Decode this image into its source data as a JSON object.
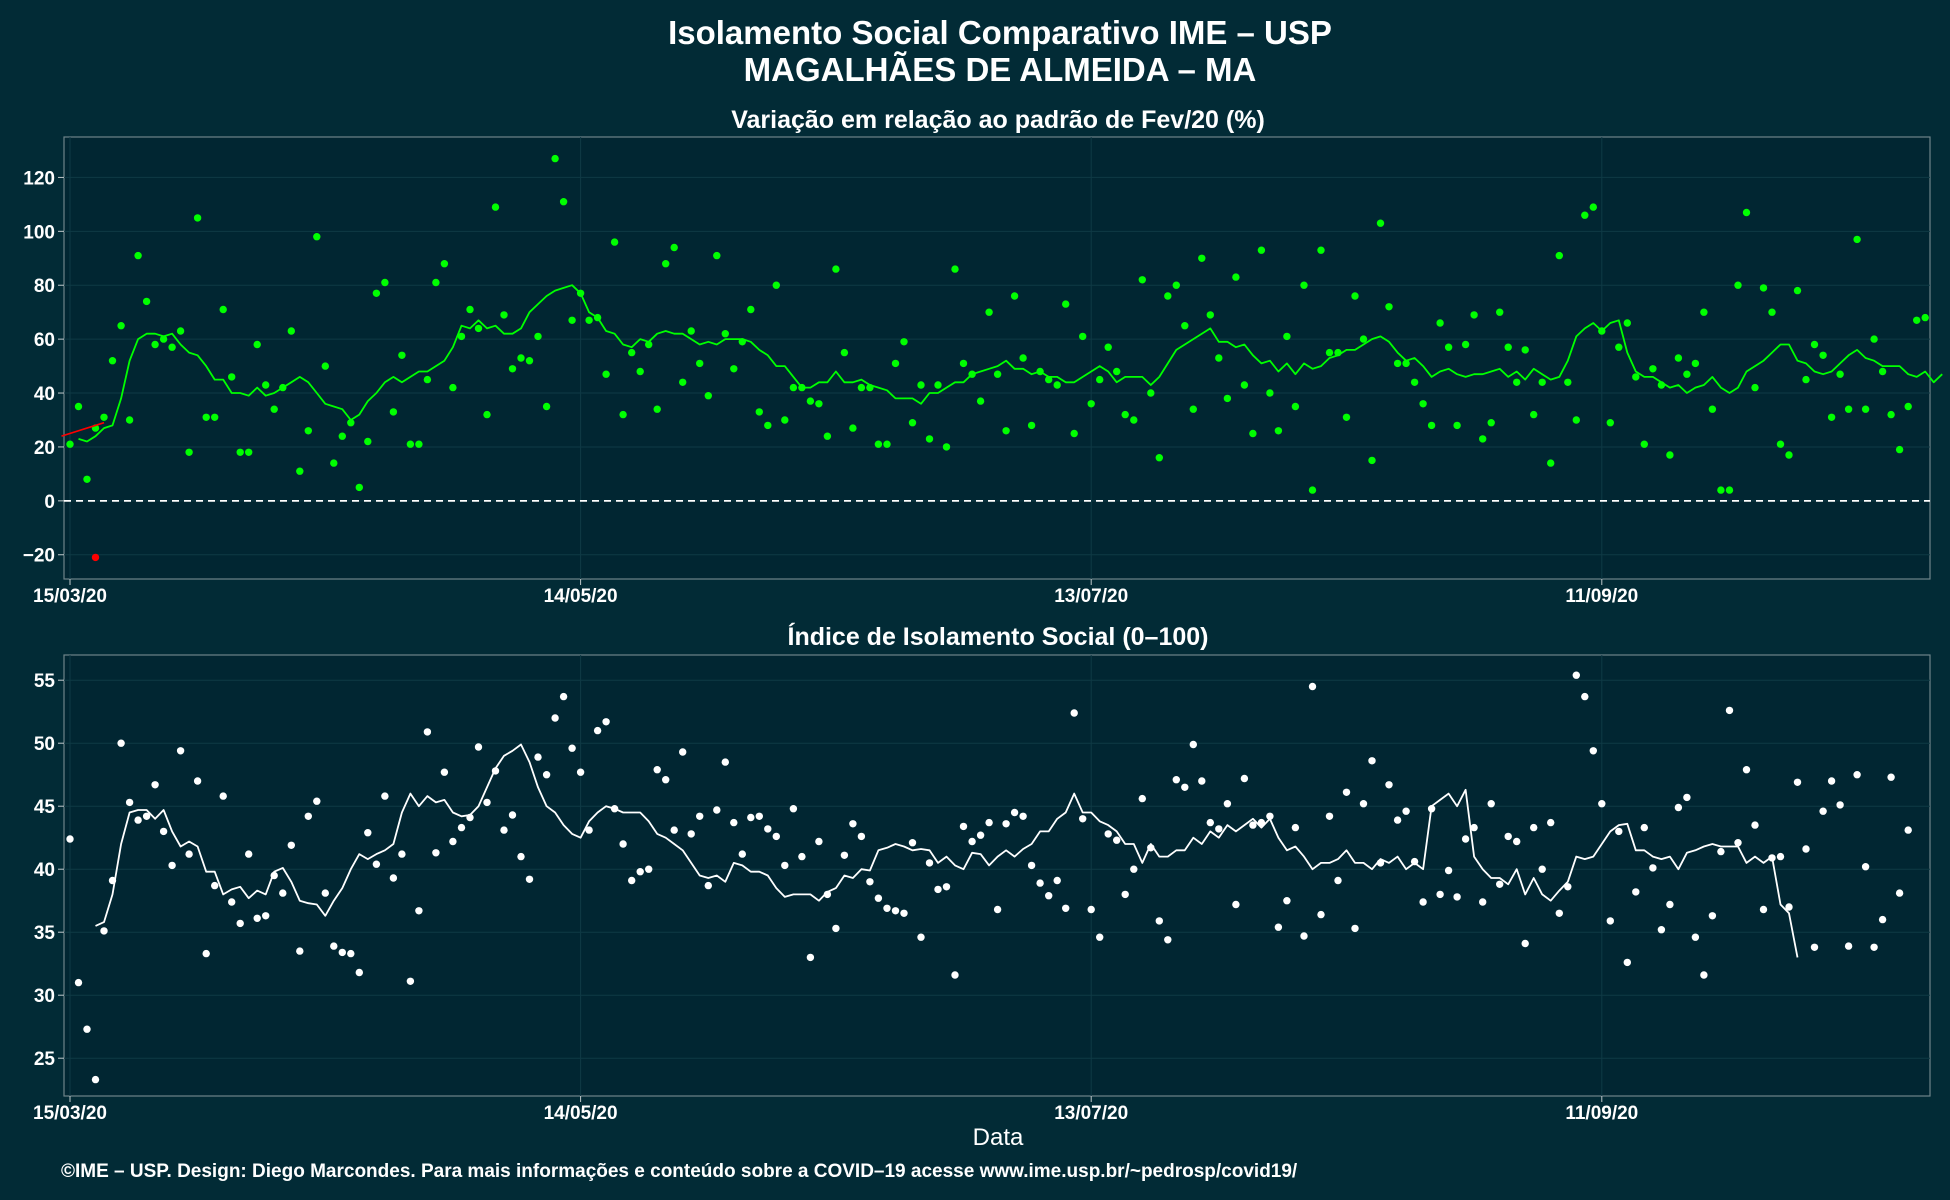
{
  "header": {
    "title": "Isolamento Social Comparativo IME – USP",
    "subtitle": "MAGALHÃES DE ALMEIDA – MA"
  },
  "footer": {
    "xlabel": "Data",
    "credit": "©IME – USP. Design: Diego Marcondes. Para mais informações e conteúdo sobre a COVID–19 acesse www.ime.usp.br/~pedrosp/covid19/"
  },
  "colors": {
    "background": "#022b36",
    "variation_series": "#00ff00",
    "negative_point": "#ff0000",
    "index_series": "#ffffff"
  },
  "chart_data": [
    {
      "type": "scatter",
      "title": "Variação em relação ao padrão de Fev/20 (%)",
      "xlabel": "",
      "ylabel": "",
      "x_start": "15/03/20",
      "x_ticks": [
        {
          "label": "15/03/20",
          "day": 0
        },
        {
          "label": "14/05/20",
          "day": 60
        },
        {
          "label": "13/07/20",
          "day": 120
        },
        {
          "label": "11/09/20",
          "day": 180
        }
      ],
      "ylim": [
        -29,
        135
      ],
      "y_ticks": [
        -20,
        0,
        20,
        40,
        60,
        80,
        100,
        120
      ],
      "reference_line": 0,
      "grid": true,
      "points": [
        21,
        35,
        8,
        27,
        31,
        52,
        65,
        30,
        91,
        74,
        58,
        60,
        57,
        63,
        18,
        105,
        31,
        31,
        71,
        46,
        18,
        18,
        58,
        43,
        34,
        42,
        63,
        11,
        26,
        98,
        50,
        14,
        24,
        29,
        5,
        22,
        77,
        81,
        33,
        54,
        21,
        21,
        45,
        81,
        88,
        42,
        61,
        71,
        64,
        32,
        109,
        69,
        49,
        53,
        52,
        61,
        35,
        127,
        111,
        67,
        77,
        67,
        68,
        47,
        96,
        32,
        55,
        48,
        58,
        34,
        88,
        94,
        44,
        63,
        51,
        39,
        91,
        62,
        49,
        59,
        71,
        33,
        28,
        80,
        30,
        42,
        42,
        37,
        36,
        24,
        86,
        55,
        27,
        42,
        42,
        21,
        21,
        51,
        59,
        29,
        43,
        23,
        43,
        20,
        86,
        51,
        47,
        37,
        70,
        47,
        26,
        76,
        53,
        28,
        48,
        45,
        43,
        73,
        25,
        61,
        36,
        45,
        57,
        48,
        32,
        30,
        82,
        40,
        16,
        76,
        80,
        65,
        34,
        90,
        69,
        53,
        38,
        83,
        43,
        25,
        93,
        40,
        26,
        61,
        35,
        80,
        4,
        93,
        55,
        55,
        31,
        76,
        60,
        15,
        103,
        72,
        51,
        51,
        44,
        36,
        28,
        66,
        57,
        28,
        58,
        69,
        23,
        29,
        70,
        57,
        44,
        56,
        32,
        44,
        14,
        91,
        44,
        30,
        106,
        109,
        63,
        29,
        57,
        66,
        46,
        21,
        49,
        43,
        17,
        53,
        47,
        51,
        70,
        34,
        4,
        4,
        80,
        107,
        42,
        79,
        70,
        21,
        17,
        78,
        45,
        58,
        54,
        31,
        47,
        34,
        97,
        34,
        60,
        48,
        32,
        19,
        35,
        67,
        68
      ],
      "negative_points": [
        {
          "day": 3,
          "value": -21
        }
      ],
      "moving_average": [
        null,
        23,
        22,
        24,
        27,
        28,
        38,
        52,
        60,
        62,
        62,
        61,
        62,
        58,
        55,
        54,
        50,
        45,
        45,
        40,
        40,
        39,
        42,
        39,
        40,
        42,
        44,
        46,
        44,
        40,
        36,
        35,
        34,
        30,
        32,
        37,
        40,
        44,
        46,
        44,
        46,
        48,
        48,
        50,
        52,
        57,
        65,
        64,
        67,
        64,
        65,
        62,
        62,
        64,
        70,
        73,
        76,
        78,
        79,
        80,
        77,
        70,
        68,
        63,
        62,
        58,
        57,
        60,
        59,
        62,
        63,
        62,
        62,
        60,
        58,
        59,
        58,
        60,
        60,
        60,
        59,
        56,
        54,
        50,
        50,
        46,
        42,
        42,
        44,
        44,
        48,
        44,
        44,
        45,
        43,
        42,
        41,
        38,
        38,
        38,
        36,
        40,
        40,
        42,
        44,
        44,
        47,
        48,
        49,
        50,
        52,
        49,
        49,
        47,
        48,
        46,
        46,
        44,
        44,
        46,
        48,
        50,
        48,
        44,
        46,
        46,
        46,
        43,
        46,
        51,
        56,
        58,
        60,
        62,
        64,
        59,
        59,
        57,
        58,
        54,
        51,
        52,
        48,
        51,
        47,
        51,
        49,
        50,
        53,
        54,
        56,
        56,
        58,
        60,
        61,
        59,
        55,
        52,
        53,
        50,
        46,
        48,
        49,
        47,
        46,
        47,
        47,
        48,
        49,
        46,
        48,
        45,
        49,
        47,
        45,
        46,
        52,
        61,
        64,
        66,
        63,
        66,
        67,
        55,
        48,
        46,
        46,
        44,
        42,
        43,
        40,
        42,
        43,
        46,
        42,
        40,
        42,
        48,
        50,
        52,
        55,
        58,
        58,
        52,
        51,
        48,
        47,
        48,
        51,
        54,
        56,
        53,
        52,
        50,
        50,
        50,
        47,
        46,
        48,
        44,
        47,
        null
      ]
    },
    {
      "type": "scatter",
      "title": "Índice de Isolamento Social (0–100)",
      "xlabel": "Data",
      "ylabel": "",
      "x_start": "15/03/20",
      "x_ticks": [
        {
          "label": "15/03/20",
          "day": 0
        },
        {
          "label": "14/05/20",
          "day": 60
        },
        {
          "label": "13/07/20",
          "day": 120
        },
        {
          "label": "11/09/20",
          "day": 180
        }
      ],
      "ylim": [
        22,
        57
      ],
      "y_ticks": [
        25,
        30,
        35,
        40,
        45,
        50,
        55
      ],
      "grid": true,
      "points": [
        42.4,
        31.0,
        27.3,
        23.3,
        35.1,
        39.1,
        50.0,
        45.3,
        43.9,
        44.2,
        46.7,
        43.0,
        40.3,
        49.4,
        41.2,
        47.0,
        33.3,
        38.7,
        45.8,
        37.4,
        35.7,
        41.2,
        36.1,
        36.3,
        39.5,
        38.1,
        41.9,
        33.5,
        44.2,
        45.4,
        38.1,
        33.9,
        33.4,
        33.3,
        31.8,
        42.9,
        40.4,
        45.8,
        39.3,
        41.2,
        31.1,
        36.7,
        50.9,
        41.3,
        47.7,
        42.2,
        43.3,
        44.1,
        49.7,
        45.3,
        47.8,
        43.1,
        44.3,
        41.0,
        39.2,
        48.9,
        47.5,
        52.0,
        53.7,
        49.6,
        47.7,
        43.1,
        51.0,
        51.7,
        44.8,
        42.0,
        39.1,
        39.8,
        40.0,
        47.9,
        47.1,
        43.1,
        49.3,
        42.8,
        44.2,
        38.7,
        44.7,
        48.5,
        43.7,
        41.2,
        44.1,
        44.2,
        43.2,
        42.6,
        40.3,
        44.8,
        41.0,
        33.0,
        42.2,
        38.0,
        35.3,
        41.1,
        43.6,
        42.6,
        39.0,
        37.7,
        36.9,
        36.7,
        36.5,
        42.1,
        34.6,
        40.5,
        38.4,
        38.6,
        31.6,
        43.4,
        42.2,
        42.7,
        43.7,
        36.8,
        43.6,
        44.5,
        44.2,
        40.3,
        38.9,
        37.9,
        39.1,
        36.9,
        52.4,
        44.0,
        36.8,
        34.6,
        42.8,
        42.3,
        38.0,
        40.0,
        45.6,
        41.7,
        35.9,
        34.4,
        47.1,
        46.5,
        49.9,
        47.0,
        43.7,
        43.2,
        45.2,
        37.2,
        47.2,
        43.5,
        43.7,
        44.2,
        35.4,
        37.5,
        43.3,
        34.7,
        54.5,
        36.4,
        44.2,
        39.1,
        46.1,
        35.3,
        45.2,
        48.6,
        40.5,
        46.7,
        43.9,
        44.6,
        40.6,
        37.4,
        44.8,
        38.0,
        39.9,
        37.8,
        42.4,
        43.3,
        37.4,
        45.2,
        38.8,
        42.6,
        42.2,
        34.1,
        43.3,
        40.0,
        43.7,
        36.5,
        38.6,
        55.4,
        53.7,
        49.4,
        45.2,
        35.9,
        43.0,
        32.6,
        38.2,
        43.3,
        40.1,
        35.2,
        37.2,
        44.9,
        45.7,
        34.6,
        31.6,
        36.3,
        41.4,
        52.6,
        42.1,
        47.9,
        43.5,
        36.8,
        40.9,
        41.0,
        37.0,
        46.9,
        41.6,
        33.8,
        44.6,
        47.0,
        45.1,
        33.9,
        47.5,
        40.2,
        33.8,
        36.0,
        47.3,
        38.1,
        43.1
      ],
      "moving_average": [
        null,
        null,
        null,
        35.5,
        35.8,
        38.0,
        42.0,
        44.5,
        44.7,
        44.7,
        44.0,
        44.7,
        43.0,
        41.8,
        42.2,
        41.8,
        39.8,
        39.8,
        38.0,
        38.4,
        38.6,
        37.7,
        38.3,
        38.0,
        39.8,
        40.1,
        39.0,
        37.5,
        37.3,
        37.2,
        36.3,
        37.5,
        38.5,
        40.0,
        41.2,
        40.8,
        41.2,
        41.5,
        42.0,
        44.5,
        46.0,
        45.0,
        45.8,
        45.3,
        45.5,
        44.5,
        44.2,
        44.3,
        45.0,
        46.5,
        48.0,
        49.0,
        49.4,
        49.9,
        48.5,
        46.5,
        45.0,
        44.5,
        43.5,
        42.8,
        42.5,
        43.8,
        44.5,
        45.0,
        44.8,
        44.5,
        44.5,
        44.5,
        43.8,
        42.8,
        42.5,
        42.0,
        41.5,
        40.5,
        39.5,
        39.3,
        39.5,
        39.0,
        40.5,
        40.3,
        39.8,
        39.8,
        39.5,
        38.5,
        37.8,
        38.0,
        38.0,
        38.0,
        37.5,
        38.2,
        38.5,
        39.5,
        39.3,
        40.0,
        39.9,
        41.5,
        41.7,
        42.0,
        41.8,
        41.5,
        41.6,
        41.5,
        40.5,
        41.0,
        40.3,
        40.0,
        41.3,
        41.2,
        40.3,
        41.0,
        41.5,
        41.0,
        41.6,
        42.0,
        43.0,
        43.0,
        44.0,
        44.5,
        46.0,
        44.5,
        44.5,
        43.8,
        43.5,
        43.0,
        42.0,
        42.0,
        40.5,
        42.0,
        41.0,
        41.0,
        41.5,
        41.5,
        42.5,
        42.0,
        43.0,
        42.5,
        43.5,
        43.0,
        43.5,
        44.0,
        43.3,
        44.0,
        42.5,
        41.5,
        41.8,
        41.0,
        40.0,
        40.5,
        40.5,
        40.8,
        41.5,
        40.5,
        40.5,
        40.0,
        40.8,
        40.5,
        41.0,
        40.0,
        40.5,
        40.0,
        45.0,
        45.5,
        46.0,
        45.0,
        46.3,
        41.0,
        40.0,
        39.3,
        39.3,
        38.8,
        40.0,
        38.0,
        39.3,
        38.0,
        37.5,
        38.3,
        39.0,
        41.0,
        40.8,
        41.0,
        42.0,
        43.0,
        43.5,
        43.6,
        41.5,
        41.5,
        41.0,
        40.8,
        41.0,
        40.0,
        41.3,
        41.5,
        41.8,
        42.0,
        41.8,
        41.8,
        41.8,
        40.5,
        41.0,
        40.5,
        41.0,
        37.2,
        36.5,
        33.0
      ]
    }
  ]
}
